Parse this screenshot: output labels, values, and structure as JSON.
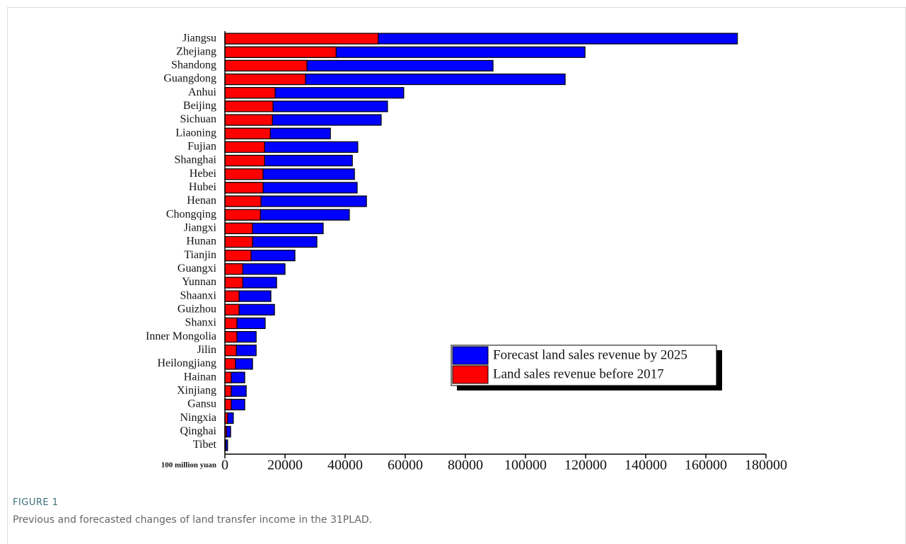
{
  "chart_data": {
    "type": "bar",
    "orientation": "horizontal",
    "categories": [
      "Jiangsu",
      "Zhejiang",
      "Shandong",
      "Guangdong",
      "Anhui",
      "Beijing",
      "Sichuan",
      "Liaoning",
      "Fujian",
      "Shanghai",
      "Hebei",
      "Hubei",
      "Henan",
      "Chongqing",
      "Jiangxi",
      "Hunan",
      "Tianjin",
      "Guangxi",
      "Yunnan",
      "Shaanxi",
      "Guizhou",
      "Shanxi",
      "Inner Mongolia",
      "Jilin",
      "Heilongjiang",
      "Hainan",
      "Xinjiang",
      "Gansu",
      "Ningxia",
      "Qinghai",
      "Tibet"
    ],
    "series": [
      {
        "name": "Forecast land sales revenue by 2025",
        "color": "#0000ff",
        "values": [
          170500,
          119800,
          89200,
          113200,
          59500,
          54100,
          52000,
          35100,
          44200,
          42400,
          43100,
          44000,
          47100,
          41400,
          32700,
          30600,
          23300,
          20000,
          17200,
          15300,
          16500,
          13400,
          10400,
          10400,
          9200,
          6600,
          7100,
          6600,
          2800,
          1900,
          900
        ]
      },
      {
        "name": "Land sales revenue before 2017",
        "color": "#ff0000",
        "values": [
          51000,
          37000,
          27300,
          26800,
          16700,
          16000,
          15800,
          15100,
          13200,
          13200,
          12700,
          12700,
          12000,
          11800,
          9200,
          9200,
          8700,
          5900,
          5900,
          4700,
          4700,
          4000,
          4000,
          3800,
          3500,
          2100,
          2100,
          2100,
          900,
          500,
          300
        ]
      }
    ],
    "xlabel": "100 million yuan",
    "xlim": [
      0,
      180000
    ],
    "xticks": [
      0,
      20000,
      40000,
      60000,
      80000,
      100000,
      120000,
      140000,
      160000,
      180000
    ],
    "legend": "lower right"
  },
  "figure": {
    "label": "FIGURE 1",
    "caption": "Previous and forecasted changes of land transfer income in the 31PLAD."
  }
}
